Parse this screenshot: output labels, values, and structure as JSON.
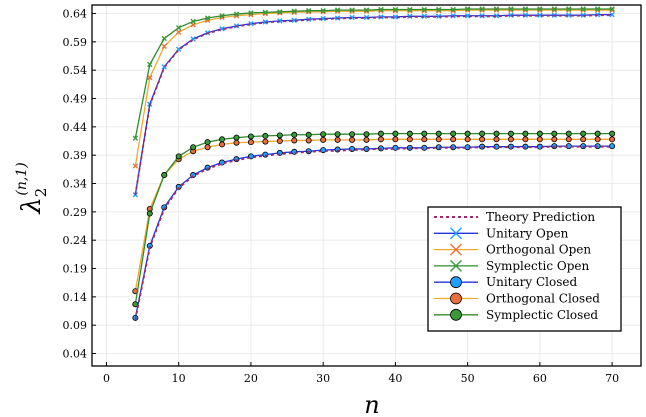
{
  "chart_data": {
    "type": "line",
    "xlabel": "n",
    "ylabel_main": "λ",
    "ylabel_sub": "2",
    "ylabel_sup": "(n,1)",
    "xlim": [
      -2,
      74
    ],
    "ylim": [
      0.018,
      0.655
    ],
    "xticks": [
      "0",
      "10",
      "20",
      "30",
      "40",
      "50",
      "60",
      "70"
    ],
    "yticks": [
      "0.04",
      "0.09",
      "0.14",
      "0.19",
      "0.24",
      "0.29",
      "0.34",
      "0.39",
      "0.44",
      "0.49",
      "0.54",
      "0.59",
      "0.64"
    ],
    "grid": true,
    "legend_position": "bottom-right",
    "x": [
      4,
      6,
      8,
      10,
      12,
      14,
      16,
      18,
      20,
      22,
      24,
      26,
      28,
      30,
      32,
      34,
      36,
      38,
      40,
      42,
      44,
      46,
      48,
      50,
      52,
      54,
      56,
      58,
      60,
      62,
      64,
      66,
      68,
      70
    ],
    "series": [
      {
        "name": "Theory Prediction",
        "color": "#9b2a6e",
        "style": "dotted",
        "marker": "none",
        "groups": [
          [
            0.32,
            0.478,
            0.545,
            0.576,
            0.594,
            0.605,
            0.612,
            0.617,
            0.621,
            0.624,
            0.626,
            0.627,
            0.629,
            0.63,
            0.631,
            0.632,
            0.632,
            0.633,
            0.633,
            0.634,
            0.634,
            0.634,
            0.635,
            0.635,
            0.635,
            0.635,
            0.636,
            0.636,
            0.636,
            0.636,
            0.636,
            0.636,
            0.637,
            0.637
          ],
          [
            0.1,
            0.227,
            0.295,
            0.332,
            0.353,
            0.366,
            0.375,
            0.381,
            0.386,
            0.389,
            0.392,
            0.394,
            0.396,
            0.397,
            0.398,
            0.399,
            0.4,
            0.401,
            0.401,
            0.402,
            0.402,
            0.403,
            0.403,
            0.403,
            0.404,
            0.404,
            0.404,
            0.404,
            0.404,
            0.405,
            0.405,
            0.405,
            0.405,
            0.405
          ]
        ]
      },
      {
        "name": "Unitary Open",
        "color": "#1f9fff",
        "line_color": "#2233dd",
        "marker": "x",
        "values": [
          0.32,
          0.48,
          0.546,
          0.577,
          0.595,
          0.606,
          0.613,
          0.618,
          0.622,
          0.625,
          0.627,
          0.628,
          0.63,
          0.631,
          0.632,
          0.633,
          0.633,
          0.634,
          0.634,
          0.635,
          0.635,
          0.635,
          0.636,
          0.636,
          0.636,
          0.636,
          0.637,
          0.637,
          0.637,
          0.637,
          0.637,
          0.637,
          0.638,
          0.638
        ]
      },
      {
        "name": "Orthogonal Open",
        "color": "#e8703a",
        "line_color": "#f0a830",
        "marker": "x",
        "values": [
          0.371,
          0.527,
          0.582,
          0.607,
          0.62,
          0.628,
          0.633,
          0.636,
          0.638,
          0.64,
          0.641,
          0.642,
          0.643,
          0.643,
          0.644,
          0.644,
          0.644,
          0.645,
          0.645,
          0.645,
          0.645,
          0.645,
          0.645,
          0.646,
          0.646,
          0.646,
          0.646,
          0.646,
          0.646,
          0.646,
          0.646,
          0.646,
          0.646,
          0.646
        ]
      },
      {
        "name": "Symplectic Open",
        "color": "#3a9a3a",
        "line_color": "#2e8b2e",
        "marker": "x",
        "values": [
          0.42,
          0.55,
          0.596,
          0.615,
          0.626,
          0.632,
          0.636,
          0.639,
          0.641,
          0.642,
          0.643,
          0.644,
          0.645,
          0.645,
          0.646,
          0.646,
          0.646,
          0.647,
          0.647,
          0.647,
          0.647,
          0.647,
          0.647,
          0.648,
          0.648,
          0.648,
          0.648,
          0.648,
          0.648,
          0.648,
          0.648,
          0.648,
          0.648,
          0.648
        ]
      },
      {
        "name": "Unitary Closed",
        "color": "#1f9fff",
        "line_color": "#2233dd",
        "marker": "circle",
        "values": [
          0.103,
          0.23,
          0.298,
          0.334,
          0.355,
          0.368,
          0.377,
          0.383,
          0.388,
          0.391,
          0.394,
          0.396,
          0.397,
          0.399,
          0.4,
          0.401,
          0.401,
          0.402,
          0.403,
          0.403,
          0.403,
          0.404,
          0.404,
          0.404,
          0.405,
          0.405,
          0.405,
          0.405,
          0.405,
          0.406,
          0.406,
          0.406,
          0.406,
          0.406
        ]
      },
      {
        "name": "Orthogonal Closed",
        "color": "#e8703a",
        "line_color": "#f0a830",
        "marker": "circle",
        "values": [
          0.15,
          0.295,
          0.355,
          0.383,
          0.397,
          0.404,
          0.409,
          0.412,
          0.413,
          0.414,
          0.415,
          0.416,
          0.416,
          0.417,
          0.417,
          0.417,
          0.417,
          0.418,
          0.418,
          0.418,
          0.418,
          0.418,
          0.418,
          0.418,
          0.418,
          0.418,
          0.418,
          0.418,
          0.418,
          0.418,
          0.418,
          0.418,
          0.418,
          0.418
        ]
      },
      {
        "name": "Symplectic Closed",
        "color": "#3a9a3a",
        "line_color": "#2e8b2e",
        "marker": "circle",
        "values": [
          0.127,
          0.287,
          0.355,
          0.388,
          0.404,
          0.413,
          0.418,
          0.421,
          0.423,
          0.424,
          0.425,
          0.426,
          0.426,
          0.427,
          0.427,
          0.427,
          0.427,
          0.428,
          0.428,
          0.428,
          0.428,
          0.428,
          0.428,
          0.428,
          0.428,
          0.428,
          0.428,
          0.428,
          0.428,
          0.428,
          0.428,
          0.428,
          0.428,
          0.428
        ]
      }
    ]
  }
}
